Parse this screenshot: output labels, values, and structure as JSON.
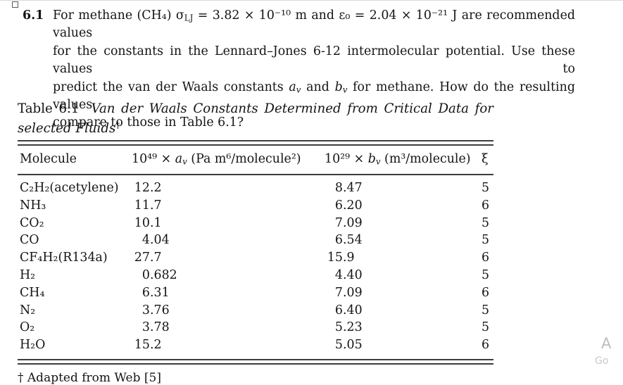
{
  "problem": {
    "number": "6.1",
    "line1_parts": [
      {
        "t": "For methane (CH₄) σ"
      },
      {
        "t": "LJ",
        "s": "sub"
      },
      {
        "t": " = 3.82 × 10⁻¹⁰ m and ε₀ = 2.04 × 10⁻²¹ J are recommended values"
      }
    ],
    "line2": "for the constants in the Lennard–Jones 6-12 intermolecular potential. Use these values to",
    "line3_parts": [
      {
        "t": "predict the van der Waals constants "
      },
      {
        "t": "a",
        "s": "i"
      },
      {
        "t": "v",
        "s": "isub"
      },
      {
        "t": " and "
      },
      {
        "t": "b",
        "s": "i"
      },
      {
        "t": "v",
        "s": "isub"
      },
      {
        "t": " for methane. How do the resulting values"
      }
    ],
    "line4": "compare to those in Table 6.1?"
  },
  "table": {
    "caption_line1_parts": [
      {
        "t": "Table 6.1  "
      },
      {
        "t": "Van der Waals Constants Determined from Critical Data for",
        "s": "i"
      }
    ],
    "caption_line2_parts": [
      {
        "t": "selected Fluids",
        "s": "i"
      },
      {
        "t": "†",
        "s": "sup"
      }
    ],
    "header": {
      "molecule": "Molecule",
      "av_parts": [
        {
          "t": "10⁴⁹ × "
        },
        {
          "t": "a",
          "s": "i"
        },
        {
          "t": "v",
          "s": "isub"
        },
        {
          "t": " (Pa m⁶/molecule²)"
        }
      ],
      "bv_parts": [
        {
          "t": "10²⁹ × "
        },
        {
          "t": "b",
          "s": "i"
        },
        {
          "t": "v",
          "s": "isub"
        },
        {
          "t": " (m³/molecule)"
        }
      ],
      "xi": "ξ"
    },
    "rows": [
      {
        "molecule": "C₂H₂(acetylene)",
        "av": "12.2",
        "bv": "8.47",
        "xi": "5"
      },
      {
        "molecule": "NH₃",
        "av": "11.7",
        "bv": "6.20",
        "xi": "6"
      },
      {
        "molecule": "CO₂",
        "av": "10.1",
        "bv": "7.09",
        "xi": "5"
      },
      {
        "molecule": "CO",
        "av": "4.04",
        "bv": "6.54",
        "xi": "5"
      },
      {
        "molecule": "CF₄H₂(R134a)",
        "av": "27.7",
        "bv": "15.9",
        "xi": "6"
      },
      {
        "molecule": "H₂",
        "av": "0.682",
        "bv": "4.40",
        "xi": "5"
      },
      {
        "molecule": "CH₄",
        "av": "6.31",
        "bv": "7.09",
        "xi": "6"
      },
      {
        "molecule": "N₂",
        "av": "3.76",
        "bv": "6.40",
        "xi": "5"
      },
      {
        "molecule": "O₂",
        "av": "3.78",
        "bv": "5.23",
        "xi": "5"
      },
      {
        "molecule": "H₂O",
        "av": "15.2",
        "bv": "5.05",
        "xi": "6"
      }
    ],
    "footnote": "† Adapted from Web [5]"
  },
  "watermark": {
    "line1": "A",
    "line2": "Go"
  }
}
